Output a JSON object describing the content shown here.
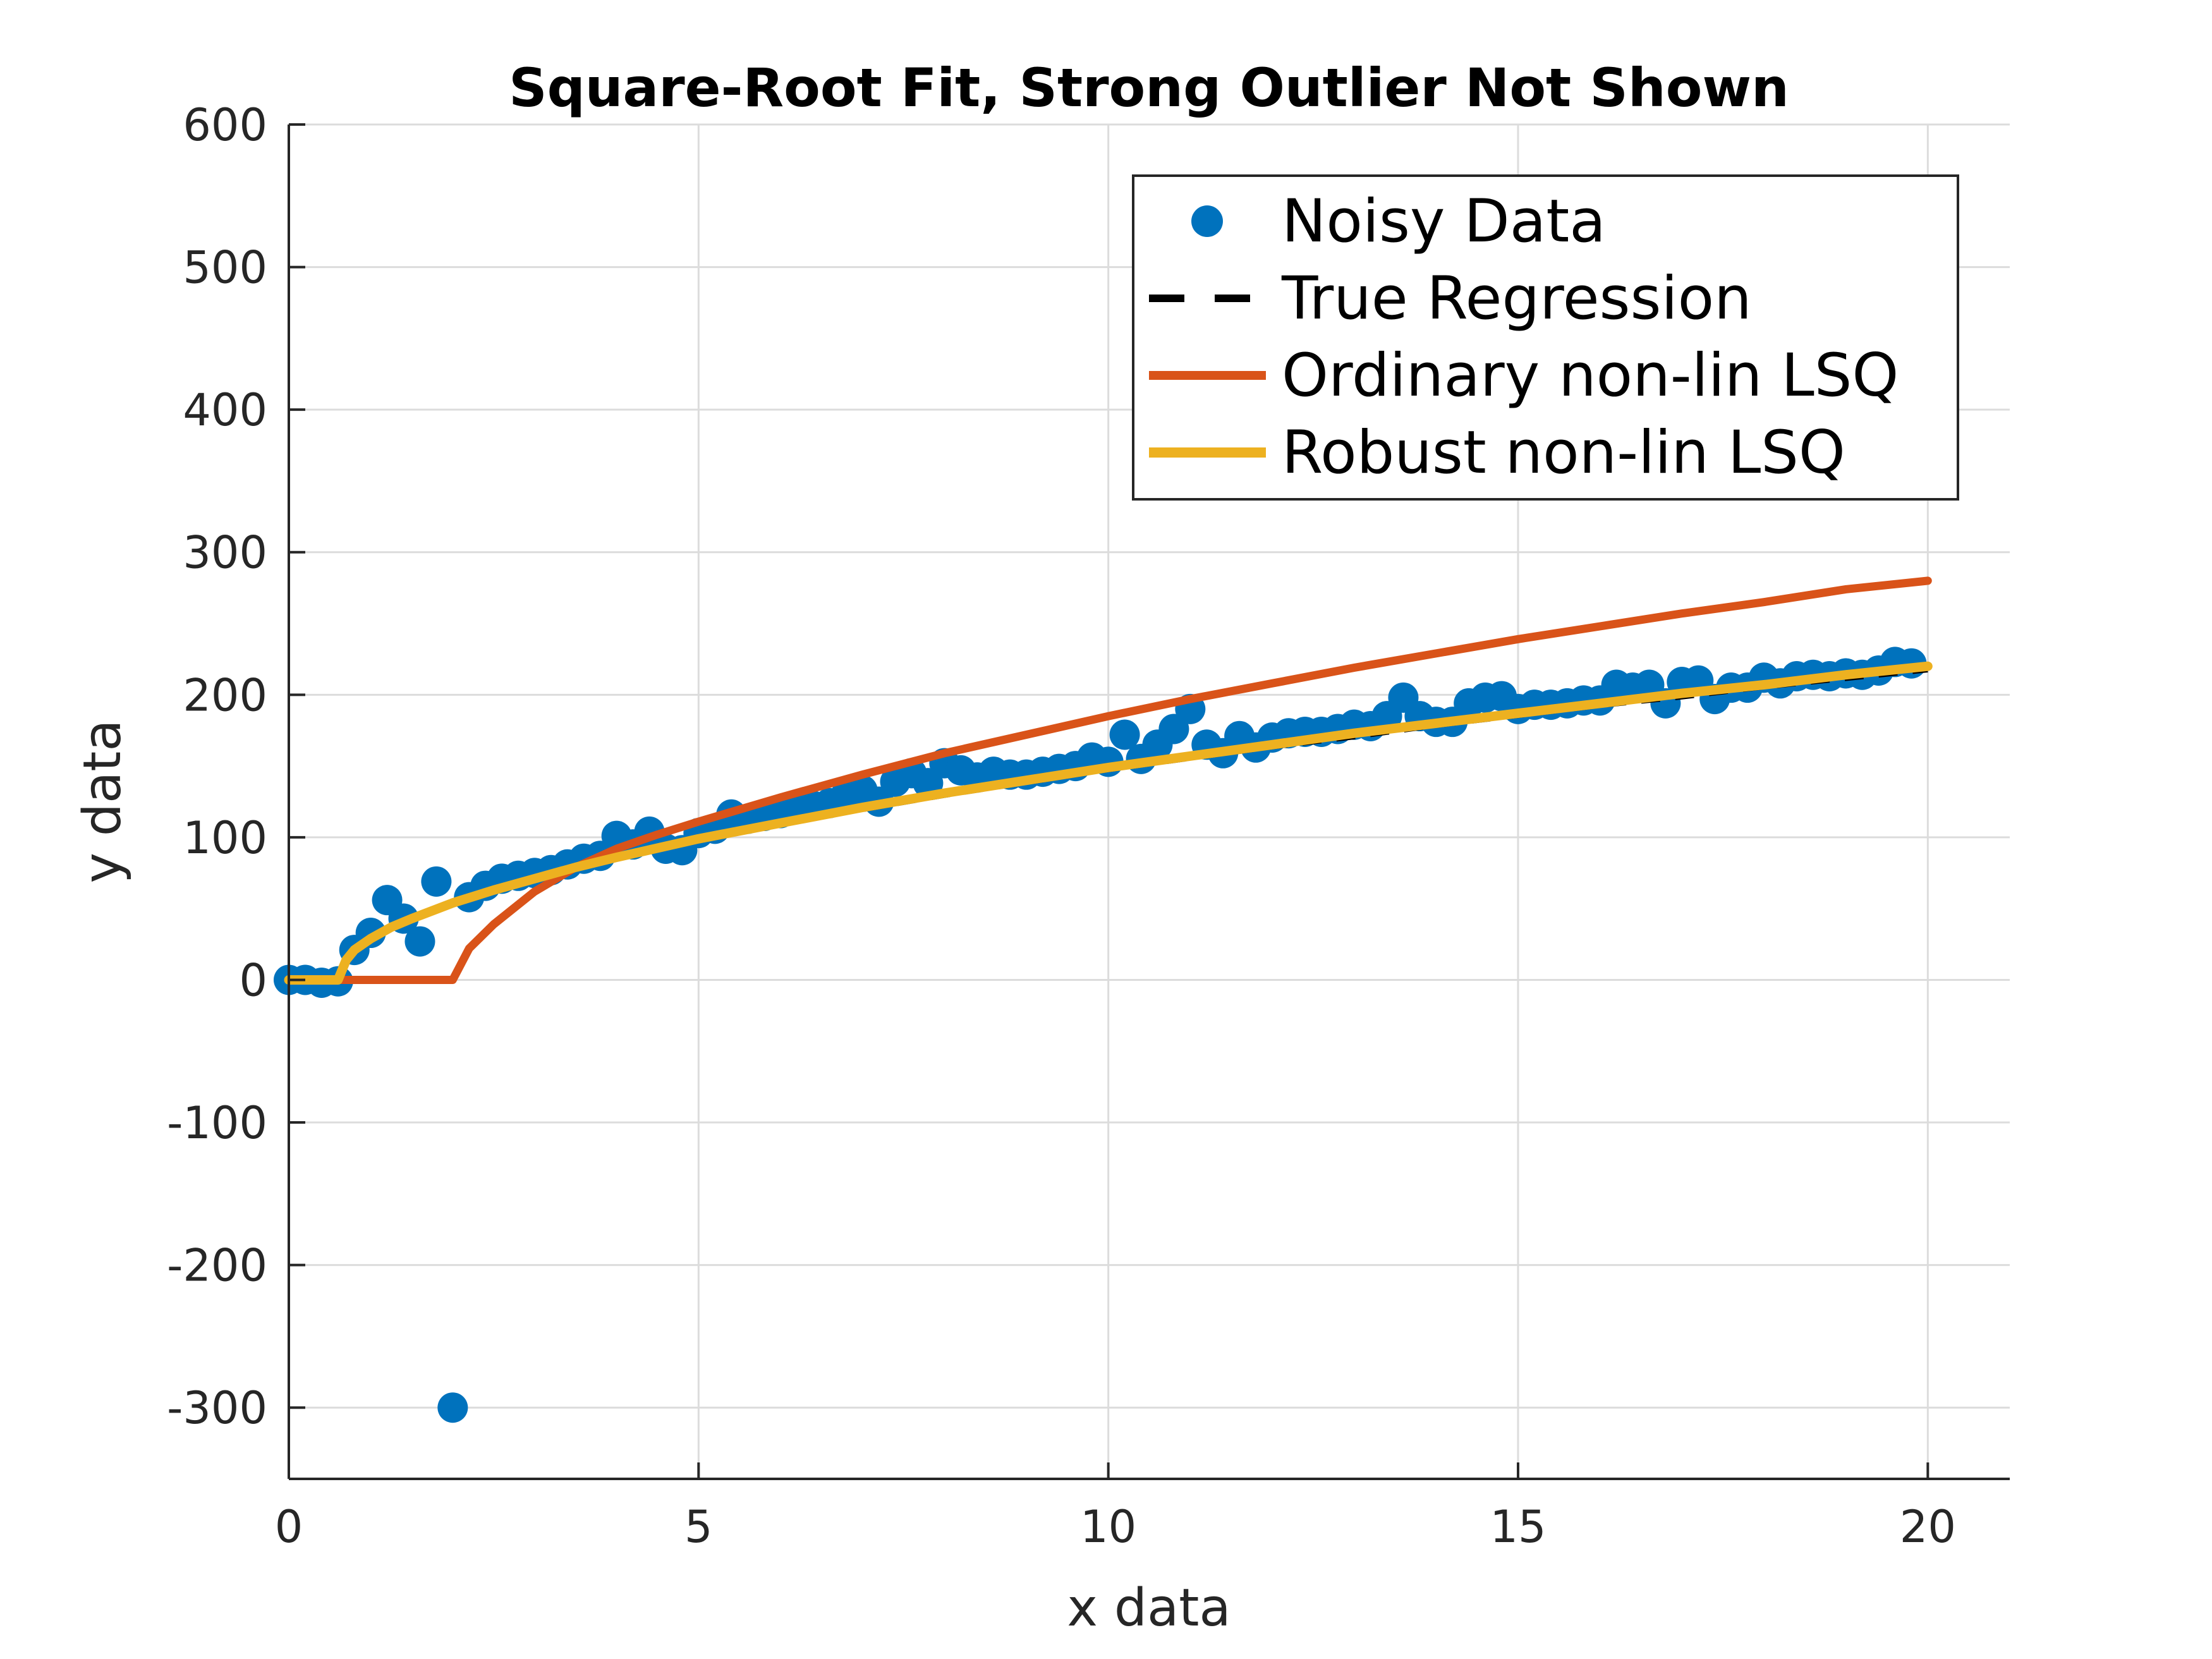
{
  "chart_data": {
    "type": "line",
    "title": "Square-Root Fit, Strong Outlier Not Shown",
    "xlabel": "x data",
    "ylabel": "y data",
    "xlim": [
      0,
      21
    ],
    "ylim": [
      -350,
      600
    ],
    "xticks": [
      0,
      5,
      10,
      15,
      20
    ],
    "yticks": [
      -300,
      -200,
      -100,
      0,
      100,
      200,
      300,
      400,
      500,
      600
    ],
    "xtick_labels": [
      "0",
      "5",
      "10",
      "15",
      "20"
    ],
    "ytick_labels": [
      "-300",
      "-200",
      "-100",
      "0",
      "100",
      "200",
      "300",
      "400",
      "500",
      "600"
    ],
    "grid": true,
    "legend_position": "top-right",
    "series": [
      {
        "name": "Noisy Data",
        "type": "scatter",
        "color": "#0072BD",
        "x": [
          0,
          0.2,
          0.4,
          0.6,
          0.8,
          1.0,
          1.2,
          1.4,
          1.6,
          1.8,
          2.0,
          2.2,
          2.4,
          2.6,
          2.8,
          3.0,
          3.2,
          3.4,
          3.6,
          3.8,
          4.0,
          4.2,
          4.4,
          4.6,
          4.8,
          5.0,
          5.2,
          5.4,
          5.6,
          5.8,
          6.0,
          6.2,
          6.4,
          6.6,
          6.8,
          7.0,
          7.2,
          7.4,
          7.6,
          7.8,
          8.0,
          8.2,
          8.4,
          8.6,
          8.8,
          9.0,
          9.2,
          9.4,
          9.6,
          9.8,
          10.0,
          10.2,
          10.4,
          10.6,
          10.8,
          11.0,
          11.2,
          11.4,
          11.6,
          11.8,
          12.0,
          12.2,
          12.4,
          12.6,
          12.8,
          13.0,
          13.2,
          13.4,
          13.6,
          13.8,
          14.0,
          14.2,
          14.4,
          14.6,
          14.8,
          15.0,
          15.2,
          15.4,
          15.6,
          15.8,
          16.0,
          16.2,
          16.4,
          16.6,
          16.8,
          17.0,
          17.2,
          17.4,
          17.6,
          17.8,
          18.0,
          18.2,
          18.4,
          18.6,
          18.8,
          19.0,
          19.2,
          19.4,
          19.6,
          19.8
        ],
        "y": [
          0,
          0,
          -2,
          -1,
          21,
          33,
          56,
          43,
          27,
          69,
          -300,
          58,
          66,
          71,
          73,
          75,
          77,
          81,
          85,
          87,
          101,
          95,
          104,
          92,
          91,
          103,
          106,
          116,
          113,
          115,
          117,
          121,
          122,
          124,
          130,
          133,
          125,
          139,
          145,
          138,
          152,
          147,
          142,
          146,
          144,
          144,
          146,
          148,
          150,
          156,
          153,
          172,
          155,
          165,
          176,
          190,
          165,
          159,
          171,
          163,
          170,
          173,
          174,
          174,
          176,
          179,
          178,
          185,
          198,
          185,
          181,
          181,
          194,
          198,
          199,
          190,
          193,
          193,
          194,
          196,
          196,
          207,
          205,
          207,
          194,
          209,
          210,
          197,
          205,
          205,
          212,
          208,
          213,
          214,
          213,
          215,
          214,
          217,
          223,
          222
        ]
      },
      {
        "name": "True Regression",
        "type": "line",
        "color": "#000000",
        "dash": true,
        "x": [
          0,
          0.6,
          0.7,
          0.8,
          1.0,
          1.25,
          1.5,
          2.0,
          2.5,
          3.0,
          3.5,
          4.0,
          5.0,
          6.0,
          7.0,
          8.0,
          9.0,
          10.0,
          11.0,
          12.0,
          13.0,
          14.0,
          15.0,
          16.0,
          17.0,
          18.0,
          19.0,
          20.0
        ],
        "y": [
          0,
          0,
          14,
          20,
          28,
          36,
          42,
          53,
          62,
          70,
          78,
          85,
          97,
          109,
          119,
          129,
          138,
          147,
          155,
          163,
          170,
          178,
          185,
          192,
          198,
          205,
          211,
          217
        ]
      },
      {
        "name": "Ordinary non-lin LSQ",
        "type": "line",
        "color": "#D95319",
        "x": [
          0,
          2.0,
          2.2,
          2.5,
          3.0,
          3.5,
          4.0,
          4.5,
          5.0,
          6.0,
          7.0,
          8.0,
          9.0,
          10.0,
          11.0,
          12.0,
          13.0,
          14.0,
          15.0,
          16.0,
          17.0,
          18.0,
          19.0,
          20.0
        ],
        "y": [
          0,
          0,
          22,
          39,
          62,
          79,
          92,
          102,
          111,
          128,
          144,
          159,
          172,
          185,
          197,
          208,
          219,
          229,
          239,
          248,
          257,
          265,
          274,
          280
        ]
      },
      {
        "name": "Robust non-lin LSQ",
        "type": "line",
        "color": "#EDB120",
        "x": [
          0,
          0.6,
          0.7,
          0.8,
          1.0,
          1.25,
          1.5,
          2.0,
          2.5,
          3.0,
          3.5,
          4.0,
          5.0,
          6.0,
          7.0,
          8.0,
          9.0,
          10.0,
          11.0,
          12.0,
          13.0,
          14.0,
          15.0,
          16.0,
          17.0,
          18.0,
          19.0,
          20.0
        ],
        "y": [
          0,
          0,
          14,
          21,
          29,
          37,
          43,
          54,
          63,
          71,
          79,
          86,
          99,
          110,
          121,
          131,
          140,
          149,
          157,
          165,
          173,
          180,
          187,
          194,
          201,
          207,
          214,
          220
        ]
      }
    ]
  }
}
